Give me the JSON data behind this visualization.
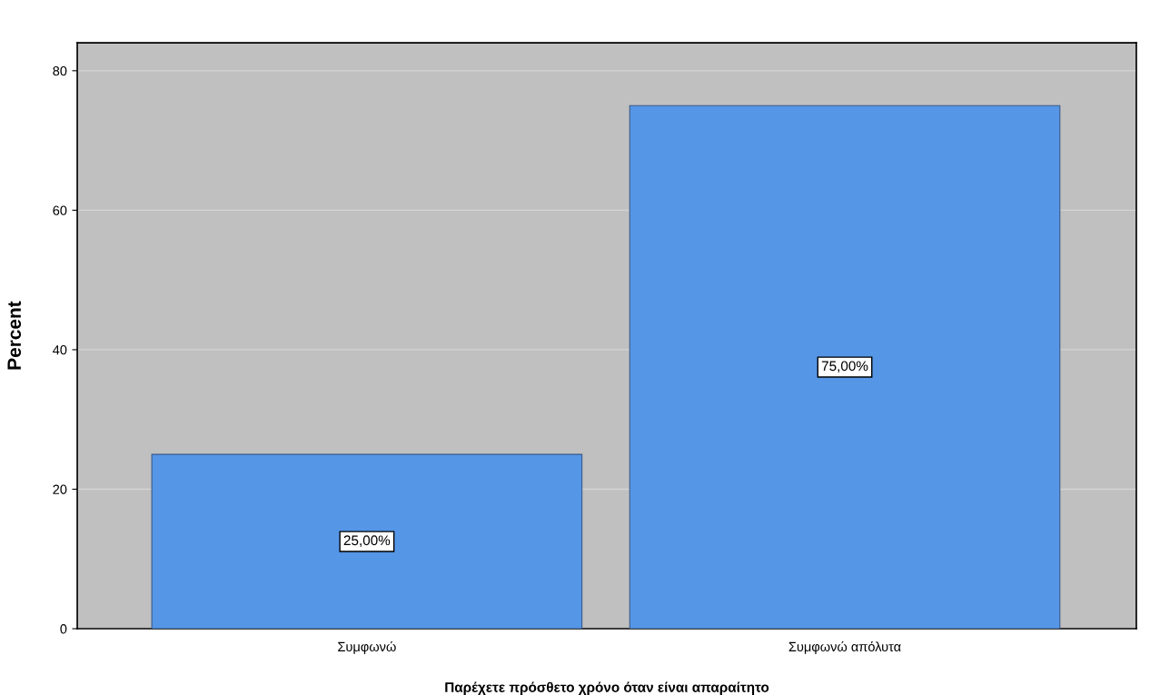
{
  "chart_data": {
    "type": "bar",
    "xlabel": "Παρέχετε πρόσθετο χρόνο όταν είναι απαραίτητο",
    "ylabel": "Percent",
    "categories": [
      "Συμφωνώ",
      "Συμφωνώ απόλυτα"
    ],
    "values": [
      25,
      75
    ],
    "color": "#5596e6",
    "value_labels": [
      "25,00%",
      "75,00%"
    ],
    "ylim": [
      0,
      84
    ],
    "yticks": [
      0,
      20,
      40,
      60,
      80
    ],
    "grid": "y"
  }
}
